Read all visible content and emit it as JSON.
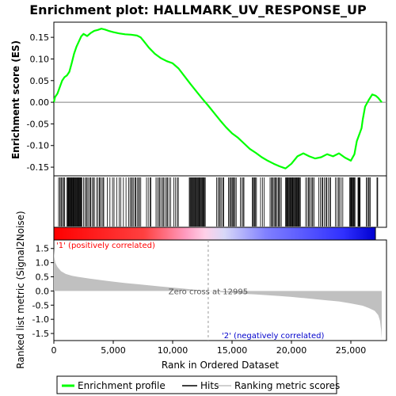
{
  "chart_data": {
    "type": "line",
    "title": "Enrichment plot: HALLMARK_UV_RESPONSE_UP",
    "xlabel": "Rank in Ordered Dataset",
    "ylabel_top": "Enrichment score (ES)",
    "ylabel_bottom": "Ranked list metric (Signal2Noise)",
    "xlim": [
      0,
      28000
    ],
    "x_ticks": [
      "0",
      "5,000",
      "10,000",
      "15,000",
      "20,000",
      "25,000"
    ],
    "x_tick_values": [
      0,
      5000,
      10000,
      15000,
      20000,
      25000
    ],
    "es_ylim": [
      -0.17,
      0.185
    ],
    "es_ticks": [
      "0.15",
      "0.10",
      "0.05",
      "0.00",
      "-0.05",
      "-0.10",
      "-0.15"
    ],
    "es_tick_values": [
      0.15,
      0.1,
      0.05,
      0.0,
      -0.05,
      -0.1,
      -0.15
    ],
    "metric_ylim": [
      -1.75,
      1.8
    ],
    "metric_ticks": [
      "1.5",
      "1.0",
      "0.5",
      "0.0",
      "-0.5",
      "-1.0",
      "-1.5"
    ],
    "metric_tick_values": [
      1.5,
      1.0,
      0.5,
      0.0,
      -0.5,
      -1.0,
      -1.5
    ],
    "n_genes": 27600,
    "zero_cross_label": "Zero cross at 12995",
    "zero_cross": 12995,
    "pos_label": "'1' (positively correlated)",
    "neg_label": "'2' (negatively correlated)",
    "legend": [
      "Enrichment profile",
      "Hits",
      "Ranking metric scores"
    ],
    "colors": {
      "es": "#00ff00",
      "pos": "#ff0000",
      "neg": "#0000ff",
      "metric": "#c0c0c0",
      "zero_text": "#555555"
    },
    "es_points": [
      [
        0,
        0.0
      ],
      [
        100,
        0.012
      ],
      [
        300,
        0.02
      ],
      [
        500,
        0.035
      ],
      [
        700,
        0.05
      ],
      [
        900,
        0.058
      ],
      [
        1100,
        0.062
      ],
      [
        1300,
        0.07
      ],
      [
        1500,
        0.09
      ],
      [
        1700,
        0.112
      ],
      [
        1900,
        0.128
      ],
      [
        2100,
        0.14
      ],
      [
        2300,
        0.152
      ],
      [
        2500,
        0.158
      ],
      [
        2800,
        0.153
      ],
      [
        3100,
        0.16
      ],
      [
        3400,
        0.165
      ],
      [
        3700,
        0.167
      ],
      [
        4000,
        0.17
      ],
      [
        4300,
        0.168
      ],
      [
        4600,
        0.165
      ],
      [
        5000,
        0.162
      ],
      [
        5500,
        0.159
      ],
      [
        6000,
        0.157
      ],
      [
        6500,
        0.156
      ],
      [
        7000,
        0.154
      ],
      [
        7300,
        0.15
      ],
      [
        7600,
        0.14
      ],
      [
        8000,
        0.126
      ],
      [
        8500,
        0.112
      ],
      [
        9000,
        0.102
      ],
      [
        9500,
        0.095
      ],
      [
        10000,
        0.09
      ],
      [
        10500,
        0.078
      ],
      [
        11000,
        0.06
      ],
      [
        11500,
        0.042
      ],
      [
        12000,
        0.025
      ],
      [
        12500,
        0.008
      ],
      [
        13000,
        -0.008
      ],
      [
        13500,
        -0.025
      ],
      [
        14000,
        -0.042
      ],
      [
        14500,
        -0.058
      ],
      [
        15000,
        -0.072
      ],
      [
        15500,
        -0.082
      ],
      [
        16000,
        -0.095
      ],
      [
        16500,
        -0.108
      ],
      [
        17000,
        -0.117
      ],
      [
        17500,
        -0.127
      ],
      [
        18000,
        -0.135
      ],
      [
        18500,
        -0.142
      ],
      [
        19000,
        -0.148
      ],
      [
        19500,
        -0.153
      ],
      [
        20000,
        -0.142
      ],
      [
        20500,
        -0.125
      ],
      [
        21000,
        -0.118
      ],
      [
        21500,
        -0.125
      ],
      [
        22000,
        -0.13
      ],
      [
        22500,
        -0.127
      ],
      [
        23000,
        -0.12
      ],
      [
        23500,
        -0.125
      ],
      [
        24000,
        -0.118
      ],
      [
        24500,
        -0.128
      ],
      [
        25000,
        -0.135
      ],
      [
        25300,
        -0.12
      ],
      [
        25500,
        -0.09
      ],
      [
        25700,
        -0.075
      ],
      [
        25900,
        -0.06
      ],
      [
        26000,
        -0.04
      ],
      [
        26200,
        -0.01
      ],
      [
        26500,
        0.005
      ],
      [
        26800,
        0.018
      ],
      [
        27100,
        0.015
      ],
      [
        27300,
        0.01
      ],
      [
        27600,
        0.0
      ]
    ],
    "metric_points": [
      [
        0,
        1.5
      ],
      [
        40,
        1.2
      ],
      [
        120,
        1.0
      ],
      [
        300,
        0.85
      ],
      [
        600,
        0.7
      ],
      [
        1000,
        0.6
      ],
      [
        1500,
        0.54
      ],
      [
        2000,
        0.5
      ],
      [
        3000,
        0.44
      ],
      [
        4000,
        0.38
      ],
      [
        5000,
        0.33
      ],
      [
        6000,
        0.28
      ],
      [
        7000,
        0.24
      ],
      [
        8000,
        0.2
      ],
      [
        9000,
        0.16
      ],
      [
        10000,
        0.12
      ],
      [
        11000,
        0.08
      ],
      [
        12000,
        0.04
      ],
      [
        12995,
        0.0
      ],
      [
        14000,
        -0.04
      ],
      [
        15000,
        -0.07
      ],
      [
        16000,
        -0.1
      ],
      [
        17000,
        -0.12
      ],
      [
        18000,
        -0.15
      ],
      [
        19000,
        -0.18
      ],
      [
        20000,
        -0.21
      ],
      [
        21000,
        -0.25
      ],
      [
        22000,
        -0.29
      ],
      [
        23000,
        -0.33
      ],
      [
        24000,
        -0.37
      ],
      [
        25000,
        -0.44
      ],
      [
        26000,
        -0.52
      ],
      [
        26500,
        -0.6
      ],
      [
        27000,
        -0.7
      ],
      [
        27300,
        -0.85
      ],
      [
        27450,
        -1.05
      ],
      [
        27550,
        -1.4
      ],
      [
        27600,
        -1.7
      ]
    ],
    "hit_clusters": [
      [
        400,
        1000,
        7
      ],
      [
        1100,
        2400,
        28
      ],
      [
        2500,
        3500,
        10
      ],
      [
        3600,
        4300,
        7
      ],
      [
        4500,
        6200,
        9
      ],
      [
        6300,
        7400,
        11
      ],
      [
        7800,
        8300,
        4
      ],
      [
        8600,
        9900,
        12
      ],
      [
        10100,
        10600,
        4
      ],
      [
        11400,
        12800,
        25
      ],
      [
        13700,
        14400,
        7
      ],
      [
        14700,
        15400,
        9
      ],
      [
        15700,
        16100,
        4
      ],
      [
        16700,
        17100,
        6
      ],
      [
        17400,
        17800,
        3
      ],
      [
        18200,
        19200,
        12
      ],
      [
        19500,
        20800,
        25
      ],
      [
        21200,
        22000,
        8
      ],
      [
        22300,
        23400,
        10
      ],
      [
        23700,
        24400,
        6
      ],
      [
        24900,
        25400,
        10
      ],
      [
        25600,
        25800,
        6
      ],
      [
        26300,
        26700,
        5
      ],
      [
        27200,
        27300,
        2
      ]
    ]
  }
}
